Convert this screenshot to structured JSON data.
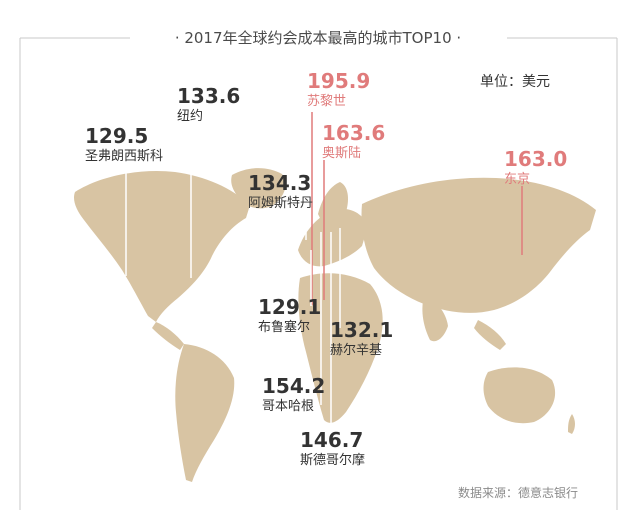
{
  "header": {
    "title": "· 2017年全球约会成本最高的城市TOP10 ·",
    "unit": "单位：美元"
  },
  "footer": {
    "source": "数据来源：德意志银行"
  },
  "colors": {
    "map": "#d8c4a3",
    "highlight": "#e07b7b",
    "normal": "#333333",
    "frame": "#c9c9c9",
    "leader": "#ffffff"
  },
  "chart_data": {
    "type": "bar",
    "title": "2017年全球约会成本最高的城市TOP10",
    "unit": "单位：美元",
    "categories": [
      "苏黎世",
      "奥斯陆",
      "东京",
      "哥本哈根",
      "斯德哥尔摩",
      "阿姆斯特丹",
      "纽约",
      "赫尔辛基",
      "圣弗朗西斯科",
      "布鲁塞尔"
    ],
    "values": [
      195.9,
      163.6,
      163.0,
      154.2,
      146.7,
      134.3,
      133.6,
      132.1,
      129.5,
      129.1
    ],
    "highlighted": [
      "苏黎世",
      "奥斯陆",
      "东京"
    ]
  }
}
